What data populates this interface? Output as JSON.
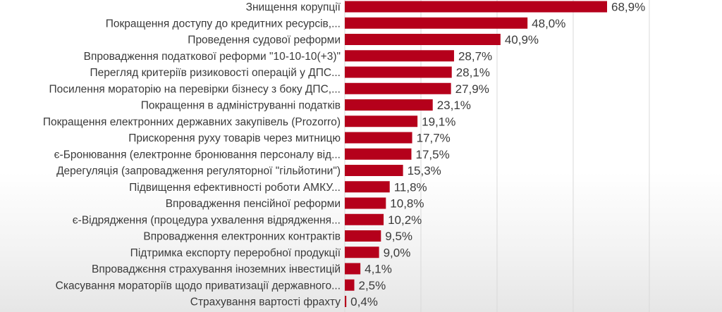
{
  "chart_data": {
    "type": "bar",
    "orientation": "horizontal",
    "title": "",
    "xlabel": "",
    "ylabel": "",
    "xlim": [
      0,
      80
    ],
    "grid": true,
    "legend": "none",
    "bar_color": "#b5001b",
    "categories": [
      "Знищення корупції",
      "Покращення доступу до кредитних ресурсів,...",
      "Проведення судової реформи",
      "Впровадження податкової реформи \"10-10-10(+3)\"",
      "Перегляд критеріїв ризиковості операцій у ДПС...",
      "Посилення мораторію на перевірки бізнесу з боку ДПС,...",
      "Покращення в адмініструванні податків",
      "Покращення електронних державних закупівель (Prozorro)",
      "Прискорення руху товарів через митницю",
      "є-Бронювання (електронне бронювання персоналу від...",
      "Дерегуляція (запровадження регуляторної \"гільйотини\")",
      "Підвищення ефективності роботи АМКУ...",
      "Впровадження пенсійної реформи",
      "є-Відрядження (процедура ухвалення відрядження...",
      "Впровадження електронних контрактів",
      "Підтримка експорту переробної продукції",
      "Впроваджєння страхування іноземних інвестицій",
      "Скасування мораторіїв щодо приватизації державного...",
      "Страхування вартості фрахту"
    ],
    "values": [
      68.9,
      48.0,
      40.9,
      28.7,
      28.1,
      27.9,
      23.1,
      19.1,
      17.7,
      17.5,
      15.3,
      11.8,
      10.8,
      10.2,
      9.5,
      9.0,
      4.1,
      2.5,
      0.4
    ],
    "value_labels": [
      "68,9%",
      "48,0%",
      "40,9%",
      "28,7%",
      "28,1%",
      "27,9%",
      "23,1%",
      "19,1%",
      "17,7%",
      "17,5%",
      "15,3%",
      "11,8%",
      "10,8%",
      "10,2%",
      "9,5%",
      "9,0%",
      "4,1%",
      "2,5%",
      "0,4%"
    ]
  }
}
